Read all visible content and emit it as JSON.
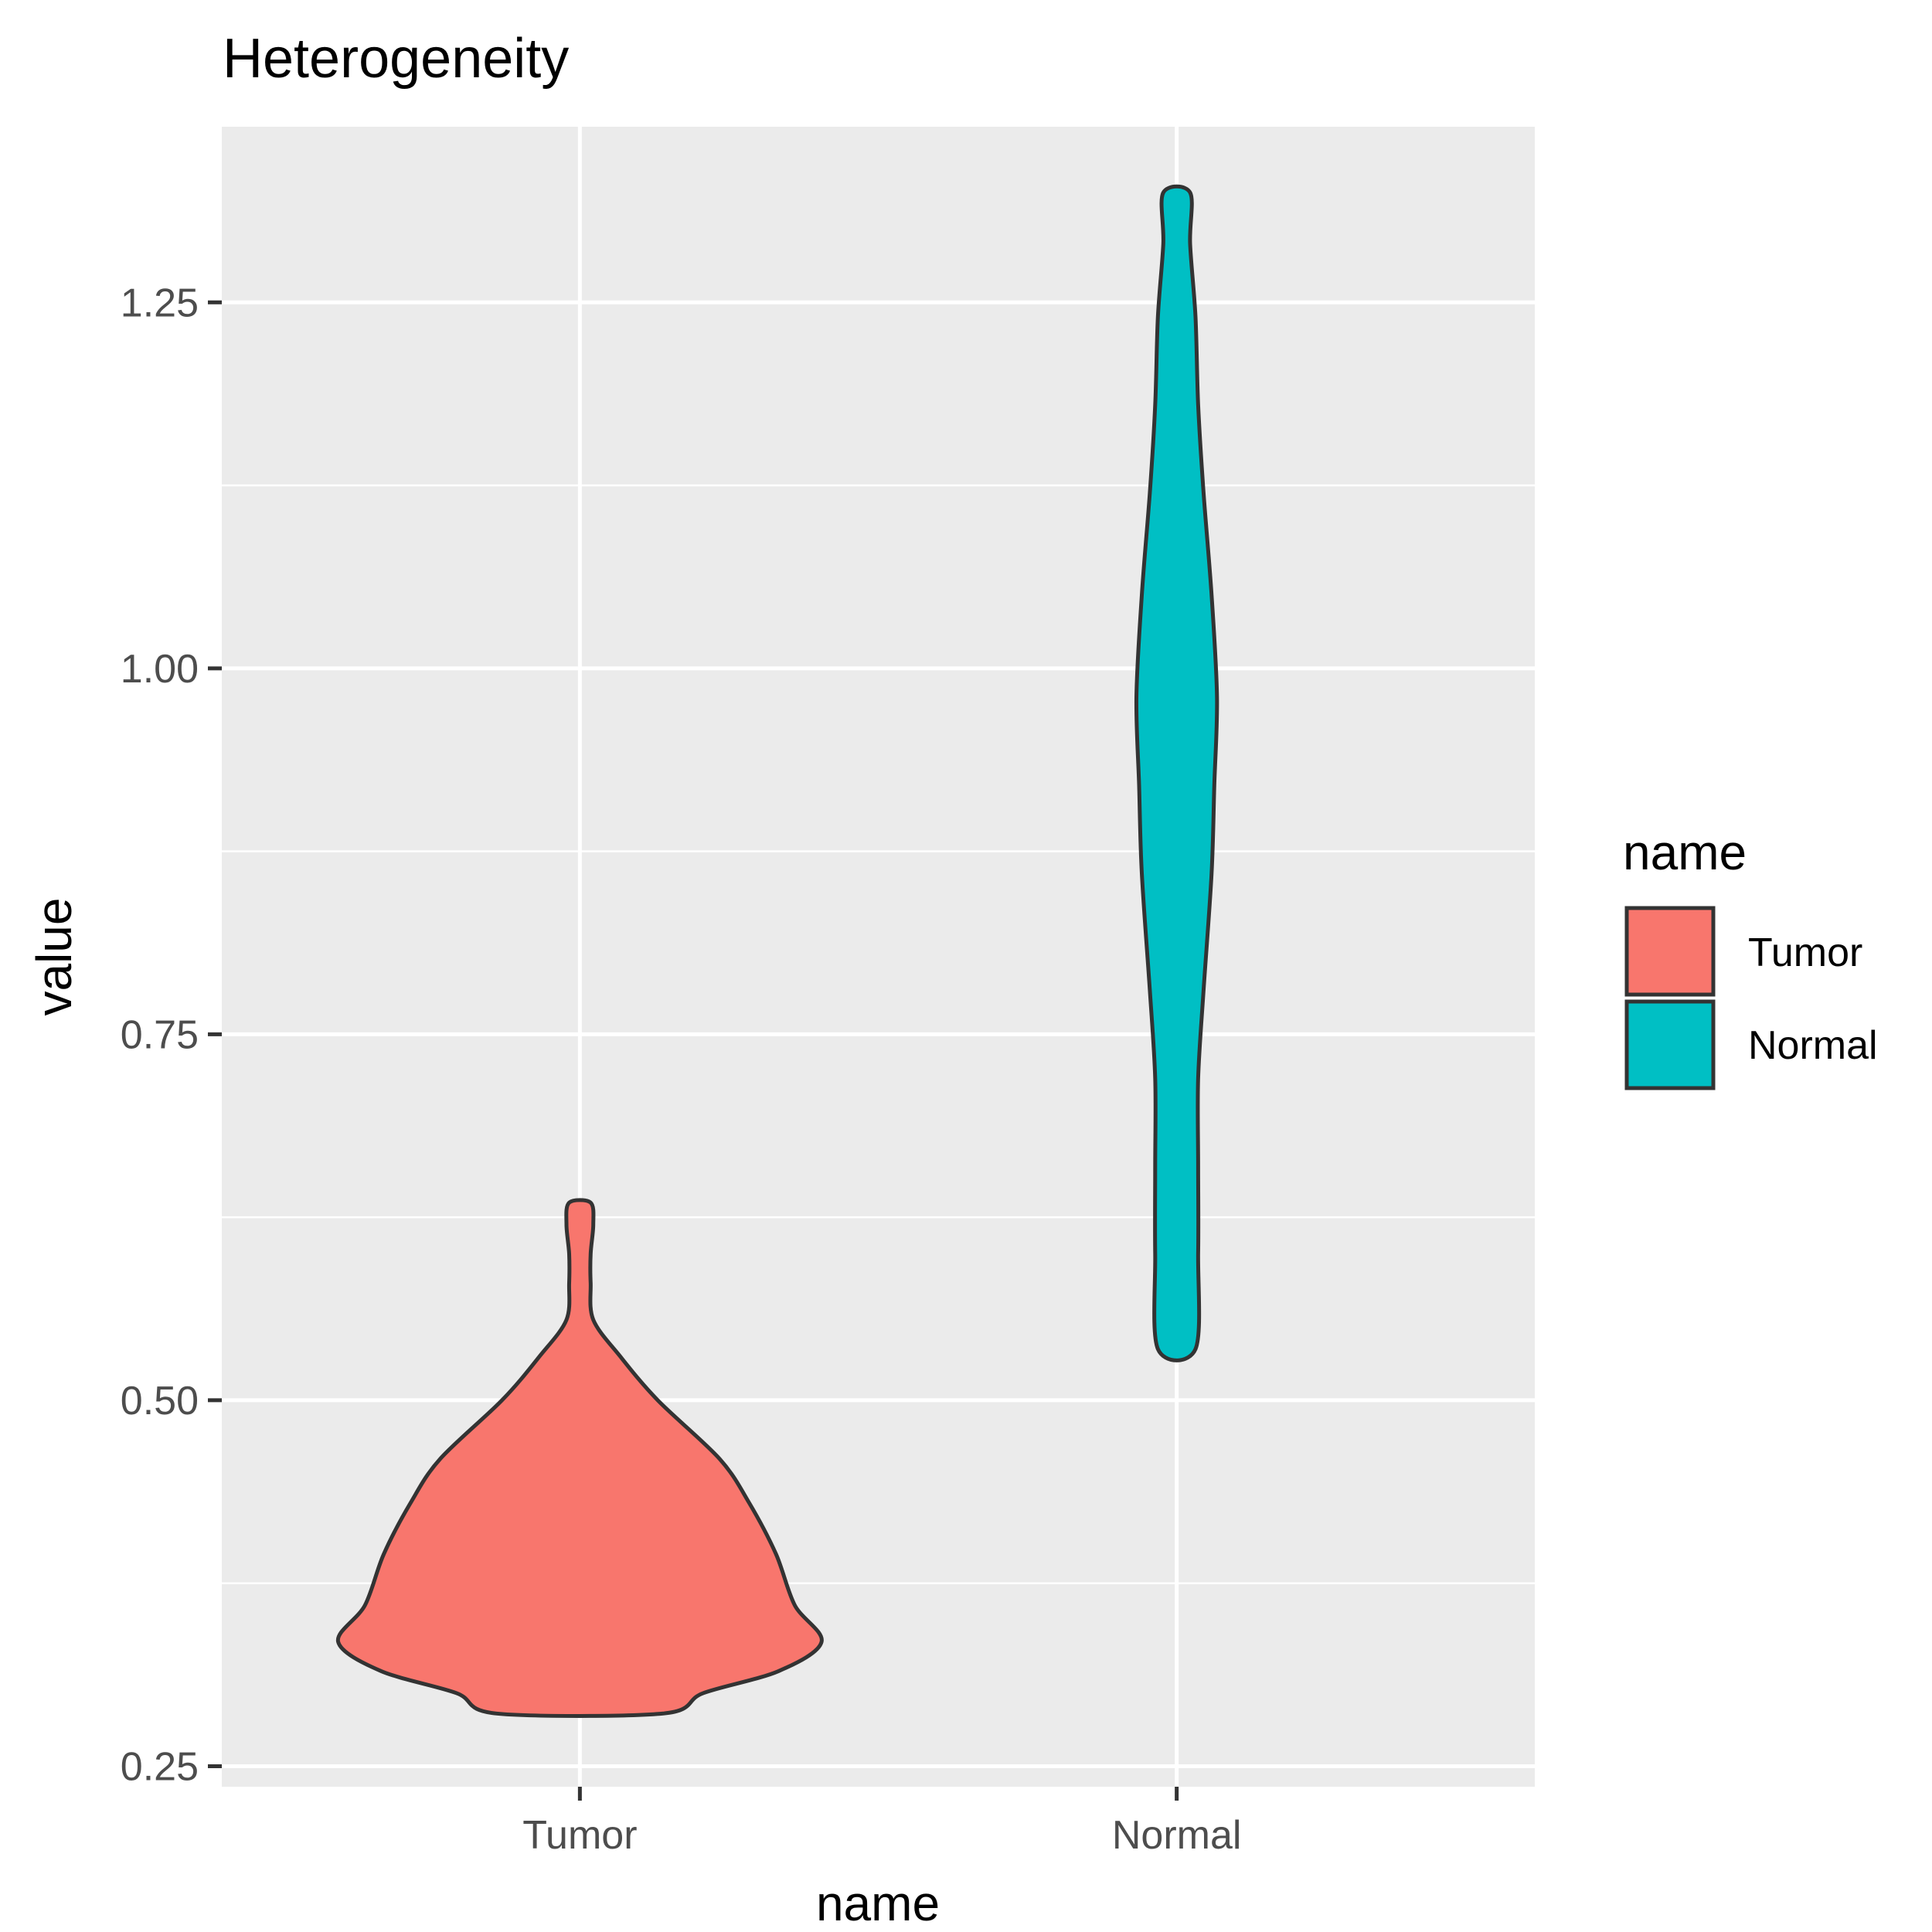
{
  "chart_data": {
    "type": "violin",
    "title": "Heterogeneity",
    "xlabel": "name",
    "ylabel": "value",
    "categories": [
      "Tumor",
      "Normal"
    ],
    "ylim": [
      0.236,
      1.37
    ],
    "y_ticks": [
      0.25,
      0.5,
      0.75,
      1.0,
      1.25
    ],
    "y_tick_labels": [
      "0.25",
      "0.50",
      "0.75",
      "1.00",
      "1.25"
    ],
    "legend": {
      "title": "name",
      "position": "right",
      "entries": [
        {
          "label": "Tumor",
          "color": "#F8766D"
        },
        {
          "label": "Normal",
          "color": "#00BFC4"
        }
      ]
    },
    "series": [
      {
        "name": "Tumor",
        "color": "#F8766D",
        "range": [
          0.286,
          0.635
        ],
        "half_width_profile": [
          [
            0.286,
            0.31
          ],
          [
            0.3,
            0.46
          ],
          [
            0.315,
            0.74
          ],
          [
            0.335,
            0.9
          ],
          [
            0.36,
            0.8
          ],
          [
            0.395,
            0.73
          ],
          [
            0.43,
            0.63
          ],
          [
            0.46,
            0.52
          ],
          [
            0.5,
            0.29
          ],
          [
            0.53,
            0.15
          ],
          [
            0.555,
            0.05
          ],
          [
            0.58,
            0.04
          ],
          [
            0.6,
            0.04
          ],
          [
            0.62,
            0.05
          ],
          [
            0.635,
            0.04
          ]
        ]
      },
      {
        "name": "Normal",
        "color": "#00BFC4",
        "range": [
          0.535,
          1.325
        ],
        "half_width_profile": [
          [
            0.535,
            0.07
          ],
          [
            0.6,
            0.08
          ],
          [
            0.66,
            0.08
          ],
          [
            0.72,
            0.08
          ],
          [
            0.78,
            0.1
          ],
          [
            0.86,
            0.13
          ],
          [
            0.92,
            0.14
          ],
          [
            0.98,
            0.15
          ],
          [
            1.05,
            0.13
          ],
          [
            1.12,
            0.1
          ],
          [
            1.18,
            0.08
          ],
          [
            1.24,
            0.07
          ],
          [
            1.29,
            0.05
          ],
          [
            1.325,
            0.05
          ]
        ]
      }
    ],
    "fill_colors": {
      "panel": "#EBEBEB",
      "grid": "#FFFFFF",
      "outline": "#333333"
    }
  }
}
